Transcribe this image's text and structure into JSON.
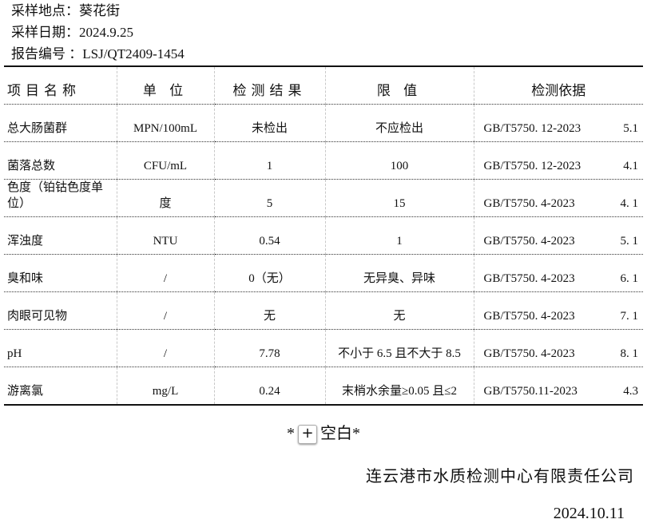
{
  "meta": {
    "location": "采样地点：葵花街",
    "date": "采样日期：2024.9.25",
    "report_no": "报告编号 ：LSJ/QT2409-1454"
  },
  "table": {
    "headers": [
      "项目名称",
      "单 位",
      "检测结果",
      "限 值",
      "检测依据"
    ],
    "rows": [
      {
        "item": "总大肠菌群",
        "unit": "MPN/100mL",
        "result": "未检出",
        "limit": "不应检出",
        "std": "GB/T5750. 12-2023",
        "clause": "5.1"
      },
      {
        "item": "菌落总数",
        "unit": "CFU/mL",
        "result": "1",
        "limit": "100",
        "std": "GB/T5750. 12-2023",
        "clause": "4.1"
      },
      {
        "item": "色度（铂钴色度单位）",
        "unit": "度",
        "result": "5",
        "limit": "15",
        "std": "GB/T5750. 4-2023",
        "clause": "4. 1"
      },
      {
        "item": "浑浊度",
        "unit": "NTU",
        "result": "0.54",
        "limit": "1",
        "std": "GB/T5750. 4-2023",
        "clause": "5. 1"
      },
      {
        "item": "臭和味",
        "unit": "/",
        "result": "0（无）",
        "limit": "无异臭、异味",
        "std": "GB/T5750. 4-2023",
        "clause": "6. 1"
      },
      {
        "item": "肉眼可见物",
        "unit": "/",
        "result": "无",
        "limit": "无",
        "std": "GB/T5750. 4-2023",
        "clause": "7. 1"
      },
      {
        "item": "pH",
        "unit": "/",
        "result": "7.78",
        "limit": "不小于 6.5 且不大于 8.5",
        "std": "GB/T5750. 4-2023",
        "clause": "8. 1"
      },
      {
        "item": "游离氯",
        "unit": "mg/L",
        "result": "0.24",
        "limit": "末梢水余量≥0.05 且≤2",
        "std": "GB/T5750.11-2023",
        "clause": "4.3"
      }
    ]
  },
  "footer": {
    "blank_prefix": "*",
    "add_label": "+",
    "blank_suffix": "空白*",
    "company": "连云港市水质检测中心有限责任公司",
    "date": "2024.10.11"
  }
}
